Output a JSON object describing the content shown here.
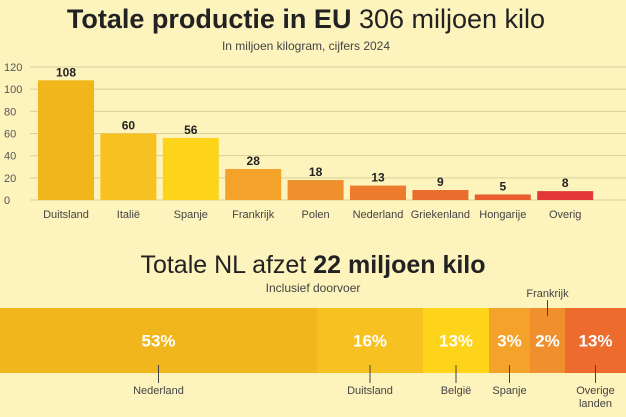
{
  "chart_data": [
    {
      "type": "bar",
      "title": "Totale productie in EU",
      "title_value": "306 miljoen kilo",
      "subtitle": "In miljoen kilogram, cijfers 2024",
      "xlabel": "",
      "ylabel": "",
      "ylim": [
        0,
        120
      ],
      "yticks": [
        0,
        20,
        40,
        60,
        80,
        100,
        120
      ],
      "grid": true,
      "categories": [
        "Duitsland",
        "Italië",
        "Spanje",
        "Frankrijk",
        "Polen",
        "Nederland",
        "Griekenland",
        "Hongarije",
        "Overig"
      ],
      "values": [
        108,
        60,
        56,
        28,
        18,
        13,
        9,
        5,
        8
      ],
      "colors": [
        "#f0b61c",
        "#f8c122",
        "#fdd41a",
        "#f4a22a",
        "#f08f2e",
        "#ec7b2d",
        "#eb6d2d",
        "#e95d2e",
        "#e3383a"
      ]
    },
    {
      "type": "bar",
      "orientation": "stacked-horizontal",
      "title_prefix": "Totale NL afzet",
      "title_value": "22 miljoen kilo",
      "subtitle": "Inclusief doorvoer",
      "categories": [
        "Nederland",
        "Duitsland",
        "België",
        "Spanje",
        "Frankrijk",
        "Overige landen"
      ],
      "values": [
        53,
        16,
        13,
        3,
        2,
        13
      ],
      "labels": [
        "53%",
        "16%",
        "13%",
        "3%",
        "2%",
        "13%"
      ],
      "colors": [
        "#f0b61c",
        "#f8c122",
        "#fdd41a",
        "#f4a22a",
        "#f08f2e",
        "#ec6b2d"
      ]
    }
  ]
}
